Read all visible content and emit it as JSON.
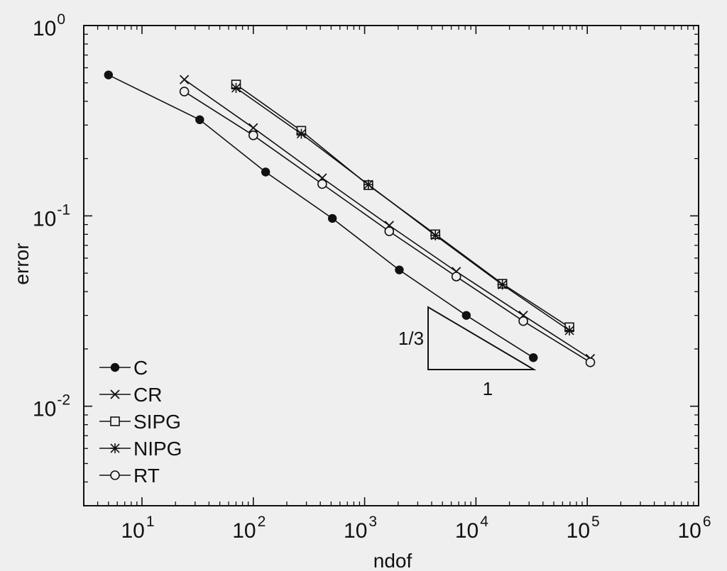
{
  "chart_data": {
    "type": "line",
    "xlabel": "ndof",
    "ylabel": "error",
    "xscale": "log",
    "yscale": "log",
    "xlim": [
      3,
      1000000
    ],
    "ylim": [
      0.003,
      1
    ],
    "x_ticks": [
      {
        "value": 10,
        "base": "10",
        "exp": "1"
      },
      {
        "value": 100,
        "base": "10",
        "exp": "2"
      },
      {
        "value": 1000,
        "base": "10",
        "exp": "3"
      },
      {
        "value": 10000,
        "base": "10",
        "exp": "4"
      },
      {
        "value": 100000,
        "base": "10",
        "exp": "5"
      },
      {
        "value": 1000000,
        "base": "10",
        "exp": "6"
      }
    ],
    "y_ticks": [
      {
        "value": 1,
        "base": "10",
        "exp": "0"
      },
      {
        "value": 0.1,
        "base": "10",
        "exp": "-1"
      },
      {
        "value": 0.01,
        "base": "10",
        "exp": "-2"
      }
    ],
    "legend_position": "bottom-left",
    "grid": false,
    "series": [
      {
        "name": "C",
        "marker": "filled-circle",
        "x": [
          5,
          33,
          129,
          513,
          2049,
          8193,
          32769
        ],
        "y": [
          0.55,
          0.32,
          0.17,
          0.097,
          0.052,
          0.03,
          0.018
        ]
      },
      {
        "name": "CR",
        "marker": "x",
        "x": [
          24,
          100,
          416,
          1664,
          6656,
          26624,
          106496
        ],
        "y": [
          0.52,
          0.29,
          0.158,
          0.089,
          0.051,
          0.03,
          0.0178
        ]
      },
      {
        "name": "SIPG",
        "marker": "square",
        "x": [
          70,
          270,
          1080,
          4320,
          17280,
          69120
        ],
        "y": [
          0.49,
          0.28,
          0.145,
          0.08,
          0.044,
          0.026
        ]
      },
      {
        "name": "NIPG",
        "marker": "asterisk",
        "x": [
          70,
          270,
          1080,
          4320,
          17280,
          69120
        ],
        "y": [
          0.47,
          0.27,
          0.146,
          0.079,
          0.0435,
          0.025
        ]
      },
      {
        "name": "RT",
        "marker": "open-circle",
        "x": [
          24,
          100,
          416,
          1664,
          6656,
          26624,
          106496
        ],
        "y": [
          0.45,
          0.265,
          0.147,
          0.083,
          0.048,
          0.028,
          0.017
        ]
      }
    ],
    "slope_triangle": {
      "vertical_label": "1/3",
      "horizontal_label": "1"
    }
  }
}
